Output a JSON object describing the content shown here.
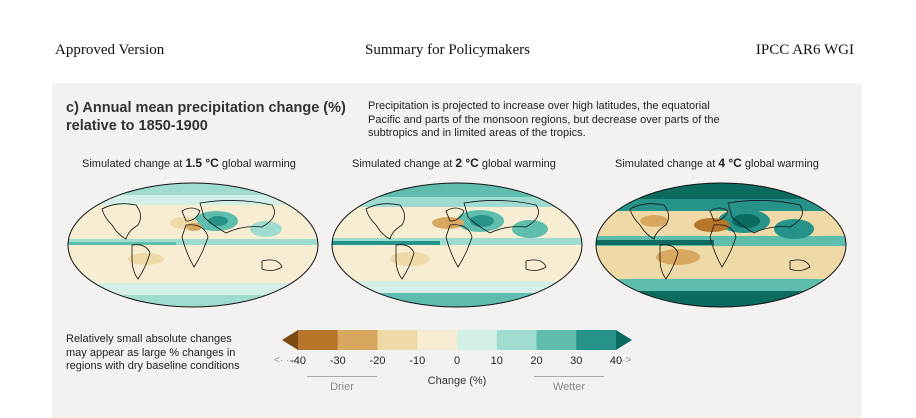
{
  "header": {
    "left": "Approved Version",
    "center": "Summary for Policymakers",
    "right": "IPCC AR6 WGI"
  },
  "panel": {
    "title_line1": "c) Annual mean precipitation change (%)",
    "title_line2": "relative to 1850-1900",
    "description_line1": "Precipitation is projected to increase over high latitudes, the equatorial",
    "description_line2": "Pacific and parts of the monsoon regions, but decrease over parts of the",
    "description_line3": "subtropics and in limited areas of the tropics.",
    "maps": [
      {
        "prefix": "Simulated change at ",
        "level": "1.5 °C",
        "suffix": " global warming"
      },
      {
        "prefix": "Simulated change at ",
        "level": "2 °C",
        "suffix": " global warming"
      },
      {
        "prefix": "Simulated change at ",
        "level": "4 °C",
        "suffix": " global warming"
      }
    ],
    "note_line1": "Relatively small absolute changes",
    "note_line2": "may appear as large % changes in",
    "note_line3": "regions with dry baseline conditions",
    "colorbar": {
      "ticks": [
        "-40",
        "-30",
        "-20",
        "-10",
        "0",
        "10",
        "20",
        "30",
        "40"
      ],
      "colors": [
        "#7b4a12",
        "#b8762b",
        "#d9a860",
        "#efd9a6",
        "#f7edd2",
        "#d3efe8",
        "#9fdcd0",
        "#5ebdad",
        "#26938a",
        "#0c6b5f"
      ],
      "axis_label": "Change (%)",
      "left_label": "Drier",
      "right_label": "Wetter"
    }
  }
}
